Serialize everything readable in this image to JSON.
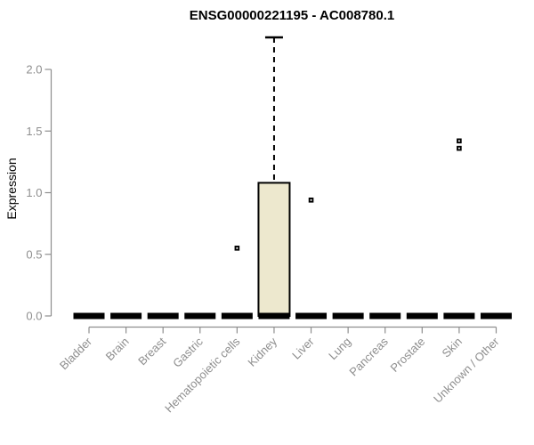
{
  "page": {
    "background": "#FFFFFF"
  },
  "chart_data": {
    "type": "boxplot",
    "title": "ENSG00000221195 - AC008780.1",
    "ylabel": "Expression",
    "xlabel": "",
    "ylim": [
      0,
      2.3
    ],
    "grid": false,
    "yticks": [
      {
        "v": 0.0,
        "label": "0.0"
      },
      {
        "v": 0.5,
        "label": "0.5"
      },
      {
        "v": 1.0,
        "label": "1.0"
      },
      {
        "v": 1.5,
        "label": "1.5"
      },
      {
        "v": 2.0,
        "label": "2.0"
      }
    ],
    "categories": [
      "Bladder",
      "Brain",
      "Breast",
      "Gastric",
      "Hematopoietic cells",
      "Kidney",
      "Liver",
      "Lung",
      "Pancreas",
      "Prostate",
      "Skin",
      "Unknown / Other"
    ],
    "boxes": [
      {
        "category": "Bladder",
        "low": 0,
        "q1": 0,
        "median": 0,
        "q3": 0,
        "high": 0,
        "outliers": []
      },
      {
        "category": "Brain",
        "low": 0,
        "q1": 0,
        "median": 0,
        "q3": 0,
        "high": 0,
        "outliers": []
      },
      {
        "category": "Breast",
        "low": 0,
        "q1": 0,
        "median": 0,
        "q3": 0,
        "high": 0,
        "outliers": []
      },
      {
        "category": "Gastric",
        "low": 0,
        "q1": 0,
        "median": 0,
        "q3": 0,
        "high": 0,
        "outliers": []
      },
      {
        "category": "Hematopoietic cells",
        "low": 0,
        "q1": 0,
        "median": 0,
        "q3": 0,
        "high": 0,
        "outliers": [
          0.55
        ]
      },
      {
        "category": "Kidney",
        "low": 0,
        "q1": 0,
        "median": 0,
        "q3": 1.08,
        "high": 2.26,
        "outliers": []
      },
      {
        "category": "Liver",
        "low": 0,
        "q1": 0,
        "median": 0,
        "q3": 0,
        "high": 0,
        "outliers": [
          0.94
        ]
      },
      {
        "category": "Lung",
        "low": 0,
        "q1": 0,
        "median": 0,
        "q3": 0,
        "high": 0,
        "outliers": []
      },
      {
        "category": "Pancreas",
        "low": 0,
        "q1": 0,
        "median": 0,
        "q3": 0,
        "high": 0,
        "outliers": []
      },
      {
        "category": "Prostate",
        "low": 0,
        "q1": 0,
        "median": 0,
        "q3": 0,
        "high": 0,
        "outliers": []
      },
      {
        "category": "Skin",
        "low": 0,
        "q1": 0,
        "median": 0,
        "q3": 0,
        "high": 0,
        "outliers": [
          1.36,
          1.42
        ]
      },
      {
        "category": "Unknown / Other",
        "low": 0,
        "q1": 0,
        "median": 0,
        "q3": 0,
        "high": 0,
        "outliers": []
      }
    ],
    "colors": {
      "box_fill": "#EDE8CE",
      "box_stroke": "#000000",
      "median_color": "#000000",
      "outlier_color": "#000000",
      "axis_color": "#8E8E8E",
      "tick_label_color": "#8E8E8E",
      "title_color": "#000000"
    },
    "legend": null
  }
}
